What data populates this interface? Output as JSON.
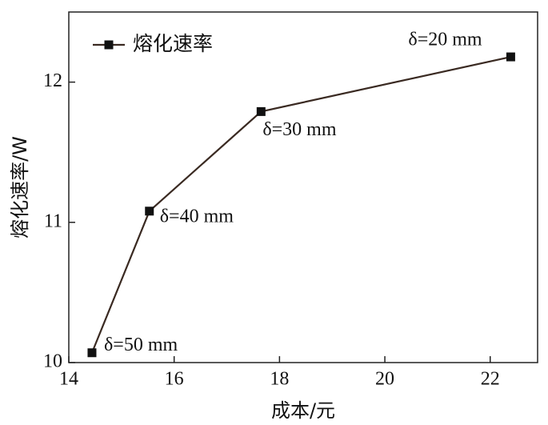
{
  "chart_data": {
    "type": "line",
    "xlabel": "成本/元",
    "ylabel": "熔化速率/W",
    "x": [
      14.44,
      15.53,
      17.65,
      22.39
    ],
    "series": [
      {
        "name": "熔化速率",
        "color": "#3a2a22",
        "values": [
          10.07,
          11.08,
          11.79,
          12.18
        ]
      }
    ],
    "xlim": [
      14,
      22.9
    ],
    "xticks": [
      14,
      16,
      18,
      20,
      22
    ],
    "ylim": [
      10,
      12.5
    ],
    "yticks": [
      10,
      11,
      12
    ],
    "annotations": [
      "δ=50 mm",
      "δ=40 mm",
      "δ=30 mm",
      "δ=20 mm"
    ],
    "legend": "upper left",
    "grid": false
  }
}
